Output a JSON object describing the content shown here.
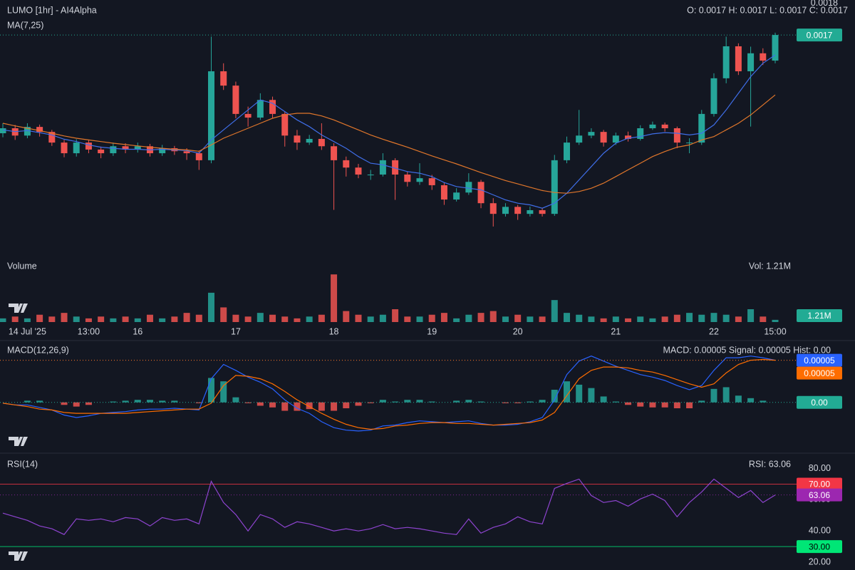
{
  "chart_data": [
    {
      "type": "candlestick",
      "title": "LUMO [1hr] - AI4Alpha",
      "subtitle": "MA(7,25)",
      "legend_text": "O: 0.0017 H: 0.0017 L: 0.0017 C: 0.0017",
      "categories": [
        null,
        null,
        "14 Jul '25",
        null,
        null,
        null,
        null,
        "13:00",
        null,
        null,
        null,
        "16",
        null,
        null,
        null,
        null,
        null,
        null,
        null,
        "17",
        null,
        null,
        null,
        null,
        null,
        null,
        null,
        "18",
        null,
        null,
        null,
        null,
        null,
        null,
        null,
        "19",
        null,
        null,
        null,
        null,
        null,
        null,
        "20",
        null,
        null,
        null,
        null,
        null,
        null,
        null,
        "21",
        null,
        null,
        null,
        null,
        null,
        null,
        null,
        "22",
        null,
        null,
        null,
        null,
        "15:00"
      ],
      "open": [
        0.00141,
        0.001425,
        0.001403,
        0.001429,
        0.001414,
        0.001382,
        0.00135,
        0.001382,
        0.001361,
        0.00135,
        0.001371,
        0.001361,
        0.001371,
        0.00135,
        0.001365,
        0.001356,
        0.00135,
        0.001329,
        0.001596,
        0.001553,
        0.001468,
        0.001457,
        0.00151,
        0.001468,
        0.001403,
        0.001382,
        0.001393,
        0.001371,
        0.001329,
        0.001307,
        0.001286,
        0.001286,
        0.001329,
        0.001286,
        0.001264,
        0.001275,
        0.001254,
        0.001211,
        0.001232,
        0.001264,
        0.0012,
        0.001168,
        0.001189,
        0.001168,
        0.001179,
        0.001168,
        0.001329,
        0.001382,
        0.001403,
        0.001414,
        0.001382,
        0.001403,
        0.001393,
        0.001425,
        0.001436,
        0.001425,
        0.001382,
        0.001382,
        0.001468,
        0.001575,
        0.001671,
        0.001596,
        0.00165,
        0.001628
      ],
      "high": [
        0.00144,
        0.001435,
        0.00144,
        0.001436,
        0.00142,
        0.00139,
        0.001392,
        0.00139,
        0.00137,
        0.001382,
        0.00138,
        0.001382,
        0.001378,
        0.001375,
        0.001372,
        0.001365,
        0.001358,
        0.0017,
        0.00162,
        0.001565,
        0.00149,
        0.00153,
        0.00152,
        0.001475,
        0.00142,
        0.001405,
        0.00144,
        0.00138,
        0.00134,
        0.001318,
        0.0013,
        0.00135,
        0.001335,
        0.001295,
        0.00132,
        0.001285,
        0.001262,
        0.001245,
        0.00129,
        0.00127,
        0.001215,
        0.0012,
        0.001195,
        0.00119,
        0.001186,
        0.001345,
        0.0014,
        0.00148,
        0.001425,
        0.00142,
        0.001412,
        0.001415,
        0.001434,
        0.001445,
        0.001442,
        0.00143,
        0.001395,
        0.00148,
        0.00159,
        0.0017,
        0.00168,
        0.00167,
        0.001665,
        0.001712
      ],
      "low": [
        0.001398,
        0.00139,
        0.001395,
        0.0014,
        0.001372,
        0.001338,
        0.00134,
        0.00135,
        0.001335,
        0.001342,
        0.00135,
        0.001352,
        0.00134,
        0.001342,
        0.001345,
        0.00133,
        0.0013,
        0.00132,
        0.00154,
        0.001455,
        0.00143,
        0.00145,
        0.001455,
        0.00137,
        0.00136,
        0.001375,
        0.00136,
        0.00118,
        0.00128,
        0.001275,
        0.00127,
        0.00128,
        0.00121,
        0.00125,
        0.001255,
        0.00124,
        0.001195,
        0.001205,
        0.001225,
        0.001185,
        0.00113,
        0.00116,
        0.00115,
        0.00116,
        0.00116,
        0.001162,
        0.00132,
        0.001375,
        0.001395,
        0.00137,
        0.001375,
        0.001385,
        0.001388,
        0.00142,
        0.001415,
        0.001365,
        0.00135,
        0.001375,
        0.00146,
        0.00156,
        0.001585,
        0.00143,
        0.001615,
        0.00162
      ],
      "close": [
        0.001425,
        0.001403,
        0.001429,
        0.001414,
        0.001382,
        0.00135,
        0.001382,
        0.001361,
        0.00135,
        0.001371,
        0.001361,
        0.001371,
        0.00135,
        0.001365,
        0.001356,
        0.00135,
        0.001329,
        0.001596,
        0.001553,
        0.001468,
        0.001457,
        0.00151,
        0.001468,
        0.001403,
        0.001382,
        0.001393,
        0.001371,
        0.001329,
        0.001307,
        0.001286,
        0.001286,
        0.001329,
        0.001286,
        0.001264,
        0.001275,
        0.001254,
        0.001211,
        0.001232,
        0.001264,
        0.0012,
        0.001168,
        0.001189,
        0.001168,
        0.001179,
        0.001168,
        0.001329,
        0.001382,
        0.001403,
        0.001414,
        0.001382,
        0.001403,
        0.001393,
        0.001425,
        0.001436,
        0.001425,
        0.001382,
        0.001382,
        0.001468,
        0.001575,
        0.001671,
        0.001596,
        0.00165,
        0.001628,
        0.001705
      ],
      "up_color": "#26a69a",
      "down_color": "#ef5350",
      "series": [
        {
          "color": "#3f6ee8",
          "values": [
            0.00142,
            0.001415,
            0.001418,
            0.001412,
            0.001405,
            0.001392,
            0.001385,
            0.001375,
            0.001368,
            0.001365,
            0.001362,
            0.001362,
            0.00136,
            0.001362,
            0.00136,
            0.001358,
            0.00135,
            0.00139,
            0.00142,
            0.00145,
            0.00148,
            0.00151,
            0.0015,
            0.001475,
            0.00145,
            0.00143,
            0.001405,
            0.001385,
            0.001365,
            0.00134,
            0.00132,
            0.001315,
            0.001305,
            0.001295,
            0.00129,
            0.00128,
            0.001262,
            0.00125,
            0.001245,
            0.00124,
            0.001225,
            0.00121,
            0.0012,
            0.001195,
            0.001185,
            0.0012,
            0.00123,
            0.00127,
            0.00131,
            0.00135,
            0.00138,
            0.001395,
            0.0014,
            0.001408,
            0.001412,
            0.00141,
            0.001405,
            0.00141,
            0.001435,
            0.00148,
            0.00153,
            0.00158,
            0.00162,
            0.001645
          ]
        },
        {
          "color": "#e0762b",
          "values": [
            0.00144,
            0.001432,
            0.001425,
            0.001418,
            0.00141,
            0.001402,
            0.001395,
            0.00139,
            0.001385,
            0.00138,
            0.001376,
            0.001372,
            0.001368,
            0.001365,
            0.001362,
            0.00136,
            0.001356,
            0.001375,
            0.001395,
            0.00141,
            0.001425,
            0.00144,
            0.001455,
            0.001465,
            0.00147,
            0.00147,
            0.001462,
            0.00145,
            0.001435,
            0.00142,
            0.001405,
            0.001392,
            0.00138,
            0.001368,
            0.001355,
            0.001342,
            0.00133,
            0.001318,
            0.001305,
            0.001292,
            0.00128,
            0.001268,
            0.001258,
            0.001248,
            0.001238,
            0.001232,
            0.00123,
            0.001235,
            0.001245,
            0.00126,
            0.00128,
            0.0013,
            0.00132,
            0.00134,
            0.001355,
            0.001368,
            0.001375,
            0.00139,
            0.0014,
            0.00142,
            0.00144,
            0.001465,
            0.001495,
            0.001525
          ]
        }
      ],
      "ylim": [
        0.00104,
        0.00181
      ],
      "yticks": [
        0.0018
      ],
      "last_label": {
        "value": 0.001705,
        "label": "0.0017"
      },
      "last_color": "#22ab94"
    },
    {
      "type": "bar",
      "title": "Volume",
      "legend_text": "Vol: 1.21M",
      "values": [
        2000000,
        3000000,
        2000000,
        4000000,
        3000000,
        5000000,
        3000000,
        2000000,
        3000000,
        2000000,
        3000000,
        2000000,
        4000000,
        2000000,
        3000000,
        5000000,
        4000000,
        16000000,
        8000000,
        4000000,
        3000000,
        5000000,
        4000000,
        3000000,
        2000000,
        3000000,
        4000000,
        26000000,
        6000000,
        4000000,
        3000000,
        4000000,
        7000000,
        3000000,
        3000000,
        4000000,
        5000000,
        2000000,
        4000000,
        5000000,
        6000000,
        3000000,
        4000000,
        3000000,
        3000000,
        12000000,
        5000000,
        4000000,
        3000000,
        2000000,
        3000000,
        2000000,
        3000000,
        2000000,
        3000000,
        4000000,
        5000000,
        4000000,
        5000000,
        4000000,
        3000000,
        7000000,
        3000000,
        1210000
      ],
      "ylim": [
        0,
        28000000
      ],
      "last_label": {
        "value": 1210000,
        "label": "1.21M"
      },
      "last_color": "#22ab94"
    },
    {
      "type": "macd",
      "title": "MACD(12,26,9)",
      "legend_text": "MACD: 0.00005 Signal: 0.00005 Hist: 0.00",
      "series": [
        {
          "color": "#2962ff",
          "values": [
            -1e-06,
            -3e-06,
            -3e-06,
            -6e-06,
            -9e-06,
            -1.5e-05,
            -1.8e-05,
            -1.6e-05,
            -1.3e-05,
            -1.2e-05,
            -1.1e-05,
            -9e-06,
            -8e-06,
            -8e-06,
            -7e-06,
            -8e-06,
            -9e-06,
            2.8e-05,
            4.5e-05,
            3.8e-05,
            3e-05,
            2.4e-05,
            1.6e-05,
            3e-06,
            -7e-06,
            -1.3e-05,
            -2.3e-05,
            -3e-05,
            -3.3e-05,
            -3.4e-05,
            -3.3e-05,
            -2.8e-05,
            -2.7e-05,
            -2.4e-05,
            -2.2e-05,
            -2.3e-05,
            -2.4e-05,
            -2.3e-05,
            -2.2e-05,
            -2.5e-05,
            -2.7e-05,
            -2.7e-05,
            -2.6e-05,
            -2.3e-05,
            -1.8e-05,
            3e-06,
            3.3e-05,
            4.9e-05,
            5.5e-05,
            4.9e-05,
            4.3e-05,
            3.8e-05,
            3.3e-05,
            3e-05,
            2.6e-05,
            2e-05,
            1.5e-05,
            2e-05,
            3.8e-05,
            5.3e-05,
            5.3e-05,
            5.5e-05,
            5.3e-05,
            5e-05
          ]
        },
        {
          "color": "#ff6d00",
          "values": [
            -1e-06,
            -3e-06,
            -5e-06,
            -8e-06,
            -9e-06,
            -1.2e-05,
            -1.3e-05,
            -1.3e-05,
            -1.3e-05,
            -1.3e-05,
            -1.3e-05,
            -1.2e-05,
            -1.1e-05,
            -1e-05,
            -9e-06,
            -8e-06,
            -8e-06,
            -1e-06,
            2e-05,
            3.2e-05,
            3.1e-05,
            2.8e-05,
            2.2e-05,
            1.3e-05,
            3e-06,
            -5e-06,
            -1.3e-05,
            -2e-05,
            -2.6e-05,
            -3e-05,
            -3.2e-05,
            -3.1e-05,
            -2.8e-05,
            -2.7e-05,
            -2.5e-05,
            -2.4e-05,
            -2.4e-05,
            -2.5e-05,
            -2.5e-05,
            -2.6e-05,
            -2.7e-05,
            -2.6e-05,
            -2.5e-05,
            -2.4e-05,
            -2.1e-05,
            -1.2e-05,
            8e-06,
            2.8e-05,
            3.8e-05,
            4.2e-05,
            4.2e-05,
            4.1e-05,
            3.8e-05,
            3.6e-05,
            3.2e-05,
            2.7e-05,
            2.2e-05,
            1.8e-05,
            2.2e-05,
            3.5e-05,
            4.5e-05,
            5e-05,
            5.1e-05,
            5e-05
          ]
        }
      ],
      "histogram": [
        0,
        0,
        2e-06,
        2e-06,
        0,
        -3e-06,
        -5e-06,
        -3e-06,
        0,
        1e-06,
        2e-06,
        3e-06,
        3e-06,
        2e-06,
        2e-06,
        0,
        -1e-06,
        2.9e-05,
        2.5e-05,
        6e-06,
        -1e-06,
        -4e-06,
        -6e-06,
        -1e-05,
        -1e-05,
        -8e-06,
        -1e-05,
        -1e-05,
        -7e-06,
        -4e-06,
        -1e-06,
        3e-06,
        1e-06,
        3e-06,
        3e-06,
        1e-06,
        0,
        2e-06,
        3e-06,
        1e-06,
        0,
        -1e-06,
        -1e-06,
        1e-06,
        3e-06,
        1.5e-05,
        2.5e-05,
        2.1e-05,
        1.7e-05,
        7e-06,
        1e-06,
        -3e-06,
        -5e-06,
        -6e-06,
        -6e-06,
        -7e-06,
        -7e-06,
        2e-06,
        1.6e-05,
        1.8e-05,
        8e-06,
        5e-06,
        2e-06,
        0
      ],
      "hist_up_color": "#26a69a",
      "hist_down_color": "#ef5350",
      "ylim": [
        -4e-05,
        7e-05
      ],
      "badges": [
        {
          "value": 5e-05,
          "label": "0.00005",
          "color": "#2962ff",
          "text_color": "#ffffff"
        },
        {
          "value": 5e-05,
          "label": "0.00005",
          "color": "#ff6d00",
          "text_color": "#ffffff"
        },
        {
          "value": 0,
          "label": "0.00",
          "color": "#22ab94",
          "text_color": "#ffffff"
        }
      ]
    },
    {
      "type": "line",
      "title": "RSI(14)",
      "legend_text": "RSI: 63.06",
      "color": "#8e44d0",
      "values": [
        51.4,
        49.1,
        46.8,
        43.2,
        41.4,
        37.7,
        47.7,
        46.8,
        47.7,
        45.9,
        48.6,
        47.7,
        43.2,
        48.6,
        46.8,
        47.7,
        44.5,
        71.8,
        58.2,
        50.5,
        40,
        50.5,
        47.7,
        42.3,
        45.9,
        44.5,
        42.3,
        40,
        41.4,
        40,
        41.4,
        44.1,
        41.4,
        42.3,
        41.4,
        40,
        38.6,
        37.7,
        47.7,
        38.6,
        42.3,
        44.5,
        49.1,
        45.9,
        44.5,
        67.3,
        70.5,
        73.2,
        62.7,
        58.2,
        59.5,
        55.9,
        60.5,
        63.6,
        59.5,
        49.1,
        58.2,
        65,
        73.2,
        67.3,
        61.4,
        65.9,
        58.2,
        63.06
      ],
      "ylim": [
        15,
        88
      ],
      "yticks": [
        {
          "value": 20,
          "label": "20.00"
        },
        {
          "value": 40,
          "label": "40.00"
        },
        {
          "value": 60,
          "label": "60.00"
        },
        {
          "value": 80,
          "label": "80.00"
        }
      ],
      "badges": [
        {
          "value": 70,
          "label": "70.00",
          "color": "#f23645",
          "text_color": "#ffffff",
          "line": "solid"
        },
        {
          "value": 63.06,
          "label": "63.06",
          "color": "#9c27b0",
          "text_color": "#ffffff",
          "line": "dotted"
        },
        {
          "value": 30,
          "label": "30.00",
          "color": "#00e676",
          "text_color": "#000000",
          "line": "solid"
        }
      ]
    }
  ]
}
